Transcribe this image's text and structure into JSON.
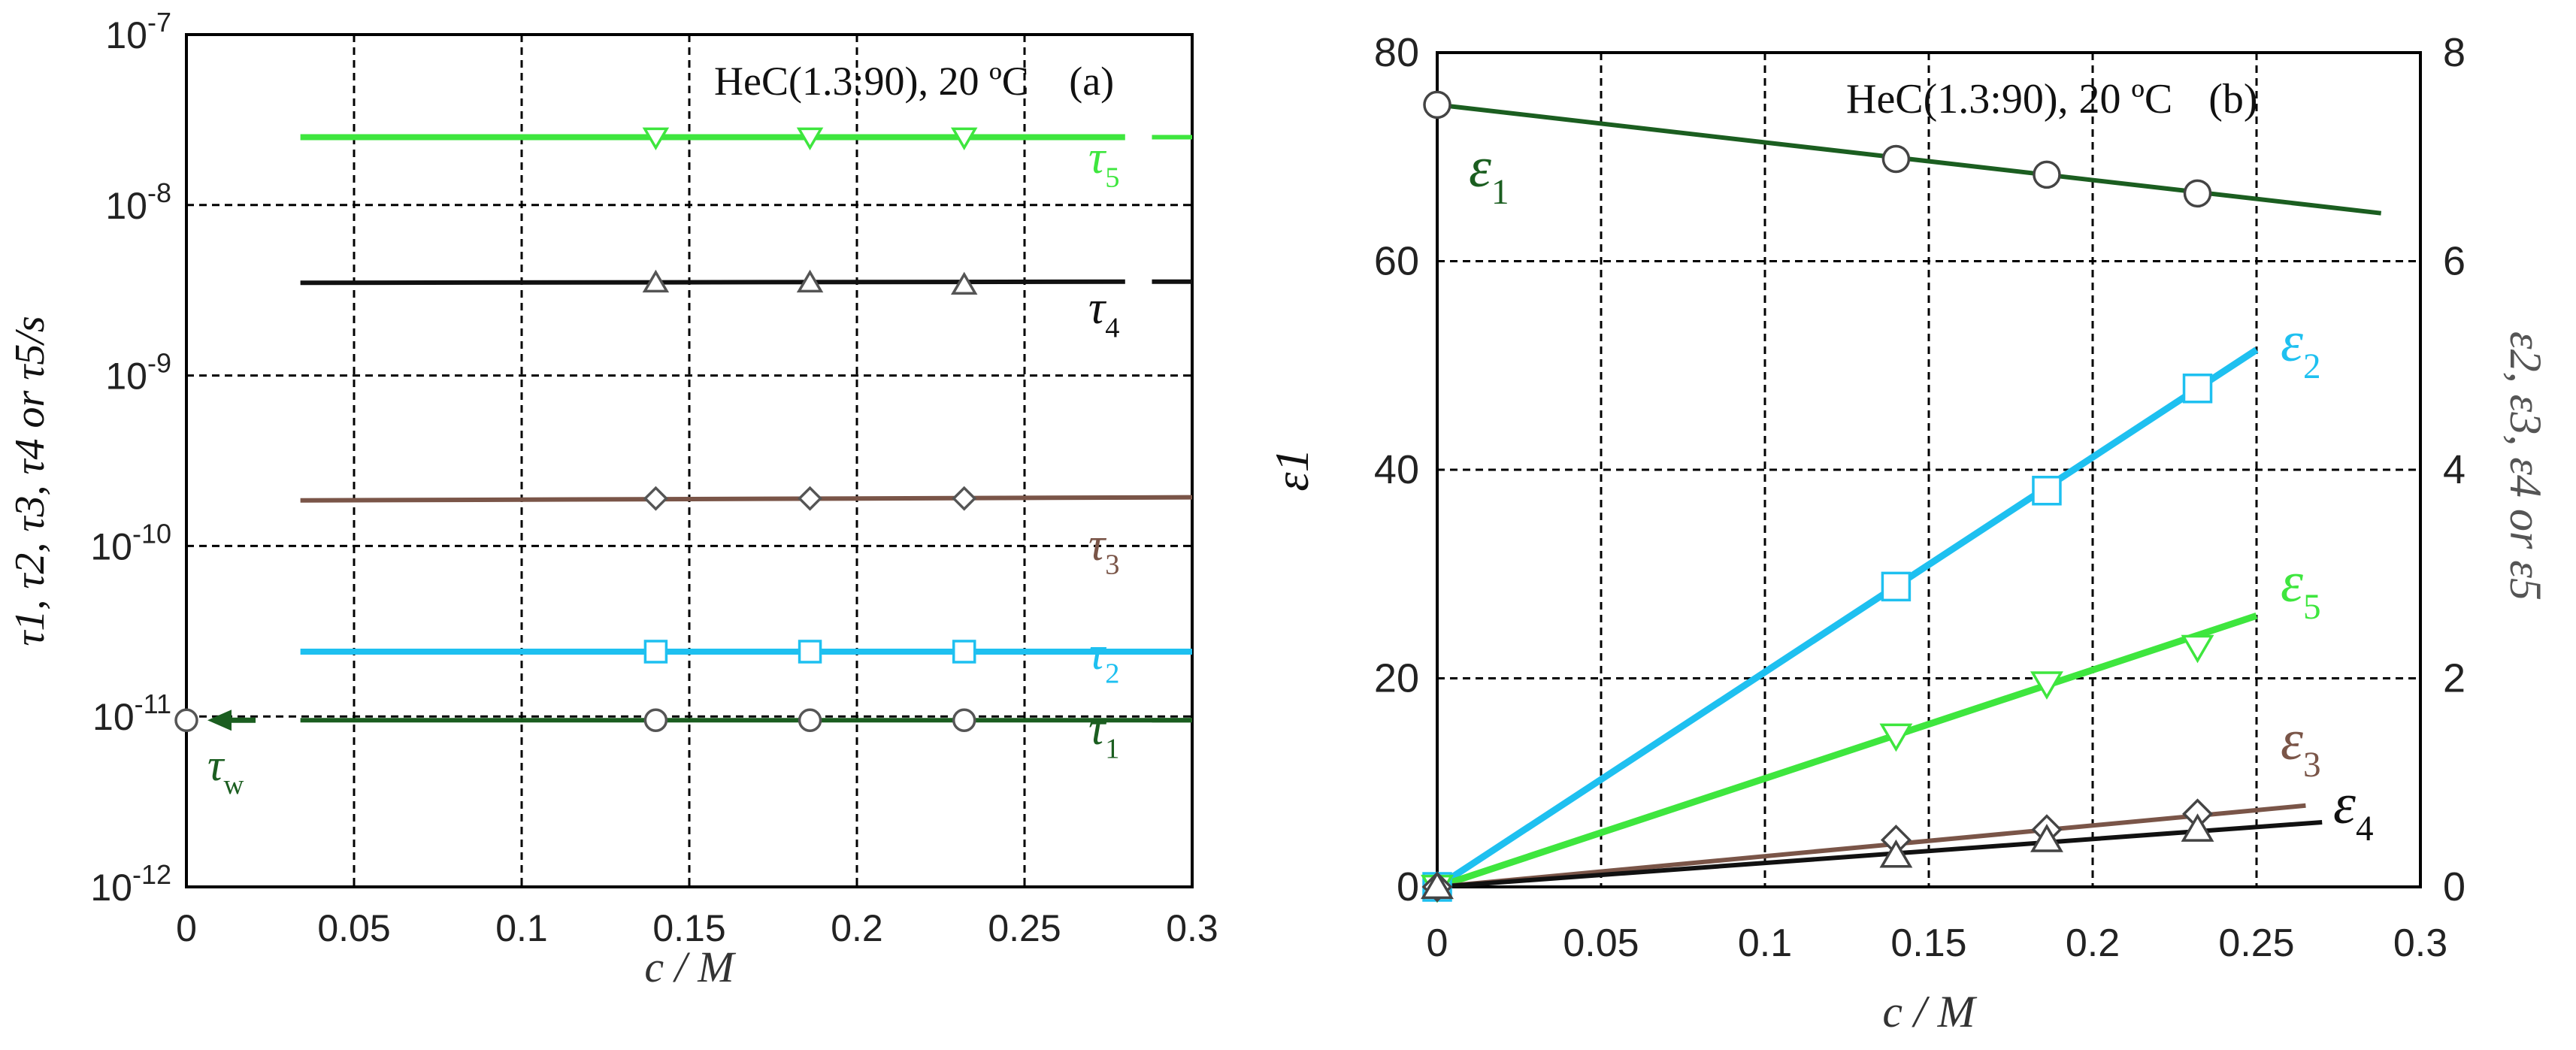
{
  "colors": {
    "tau1": "#1b5e20",
    "tau2": "#1ec0f0",
    "tau3": "#7a5548",
    "tau4": "#111111",
    "tau5": "#3ee63e",
    "eps1": "#1b5e20",
    "eps2": "#1ec0f0",
    "eps3": "#7a5548",
    "eps4": "#111111",
    "eps5": "#3ee63e",
    "tauw": "#1b5e20"
  },
  "chart_data": [
    {
      "id": "a",
      "type": "scatter",
      "yscale": "log",
      "title": "HeC(1.3:90), 20 ºC",
      "panel_label": "(a)",
      "xlabel": "c / M",
      "ylabel": "τ1, τ2, τ3, τ4 or τ5/s",
      "xlim": [
        0,
        0.3
      ],
      "ylim": [
        1e-12,
        1e-07
      ],
      "x_ticks": [
        "0",
        "0.05",
        "0.1",
        "0.15",
        "0.2",
        "0.25",
        "0.3"
      ],
      "y_ticks": [
        {
          "base": "10",
          "exp": "-12"
        },
        {
          "base": "10",
          "exp": "-11"
        },
        {
          "base": "10",
          "exp": "-10"
        },
        {
          "base": "10",
          "exp": "-9"
        },
        {
          "base": "10",
          "exp": "-8"
        },
        {
          "base": "10",
          "exp": "-7"
        }
      ],
      "grid": true,
      "series": [
        {
          "name": "τ5",
          "sym": "τ",
          "sub": "5",
          "marker": "triangle-down",
          "x": [
            0.14,
            0.186,
            0.232
          ],
          "y": [
            2.5e-08,
            2.5e-08,
            2.5e-08
          ],
          "fit_from": 0.034,
          "fit_to": 0.28,
          "fit_y": [
            2.5e-08,
            2.5e-08
          ]
        },
        {
          "name": "τ4",
          "sym": "τ",
          "sub": "4",
          "marker": "triangle-up",
          "x": [
            0.14,
            0.186,
            0.232
          ],
          "y": [
            3.5e-09,
            3.5e-09,
            3.4e-09
          ],
          "fit_from": 0.034,
          "fit_to": 0.28,
          "fit_y": [
            3.5e-09,
            3.55e-09
          ]
        },
        {
          "name": "τ3",
          "sym": "τ",
          "sub": "3",
          "marker": "diamond",
          "x": [
            0.14,
            0.186,
            0.232
          ],
          "y": [
            1.9e-10,
            1.9e-10,
            1.9e-10
          ],
          "fit_from": 0.034,
          "fit_to": 0.3,
          "fit_y": [
            1.85e-10,
            1.93e-10
          ]
        },
        {
          "name": "τ2",
          "sym": "τ",
          "sub": "2",
          "marker": "square",
          "x": [
            0.14,
            0.186,
            0.232
          ],
          "y": [
            2.4e-11,
            2.4e-11,
            2.4e-11
          ],
          "fit_from": 0.034,
          "fit_to": 0.3,
          "fit_y": [
            2.4e-11,
            2.4e-11
          ]
        },
        {
          "name": "τ1",
          "sym": "τ",
          "sub": "1",
          "marker": "circle",
          "x": [
            0.14,
            0.186,
            0.232
          ],
          "y": [
            9.5e-12,
            9.5e-12,
            9.5e-12
          ],
          "fit_from": 0.034,
          "fit_to": 0.3,
          "fit_y": [
            9.5e-12,
            9.5e-12
          ]
        }
      ],
      "annotations": [
        {
          "name": "τw",
          "sym": "τ",
          "sub": "w",
          "marker": "circle",
          "x": 0,
          "y": 9.5e-12,
          "note": "arrow pointing to point at c = 0"
        }
      ]
    },
    {
      "id": "b",
      "type": "scatter",
      "title": "HeC(1.3:90), 20 ºC",
      "panel_label": "(b)",
      "xlabel": "c / M",
      "ylabel": "ε1",
      "ylabel_right": "ε2, ε3, ε4 or ε5",
      "xlim": [
        0,
        0.3
      ],
      "ylim": [
        0,
        80
      ],
      "ylim_right": [
        0,
        8
      ],
      "x_ticks": [
        "0",
        "0.05",
        "0.1",
        "0.15",
        "0.2",
        "0.25",
        "0.3"
      ],
      "y_ticks": [
        "0",
        "20",
        "40",
        "60",
        "80"
      ],
      "y_ticks_right": [
        "0",
        "2",
        "4",
        "6",
        "8"
      ],
      "grid": true,
      "series": [
        {
          "name": "ε1",
          "sym": "ε",
          "sub": "1",
          "axis": "left",
          "marker": "circle",
          "x": [
            0,
            0.14,
            0.186,
            0.232
          ],
          "y": [
            75.0,
            69.8,
            68.3,
            66.5
          ],
          "fit_to": 0.288,
          "fit_y": [
            75.0,
            64.6
          ]
        },
        {
          "name": "ε2",
          "sym": "ε",
          "sub": "2",
          "axis": "right",
          "marker": "square",
          "x": [
            0,
            0.14,
            0.186,
            0.232
          ],
          "y": [
            0,
            2.88,
            3.8,
            4.78
          ],
          "fit_to": 0.25,
          "fit_y": [
            0,
            5.15
          ]
        },
        {
          "name": "ε5",
          "sym": "ε",
          "sub": "5",
          "axis": "right",
          "marker": "triangle-down",
          "x": [
            0,
            0.14,
            0.186,
            0.232
          ],
          "y": [
            0,
            1.45,
            1.95,
            2.3
          ],
          "fit_to": 0.25,
          "fit_y": [
            0,
            2.6
          ]
        },
        {
          "name": "ε3",
          "sym": "ε",
          "sub": "3",
          "axis": "right",
          "marker": "diamond",
          "x": [
            0,
            0.14,
            0.186,
            0.232
          ],
          "y": [
            0,
            0.45,
            0.55,
            0.7
          ],
          "fit_to": 0.265,
          "fit_y": [
            0,
            0.78
          ]
        },
        {
          "name": "ε4",
          "sym": "ε",
          "sub": "4",
          "axis": "right",
          "marker": "triangle-up",
          "x": [
            0,
            0.14,
            0.186,
            0.232
          ],
          "y": [
            0,
            0.3,
            0.45,
            0.55
          ],
          "fit_to": 0.27,
          "fit_y": [
            0,
            0.62
          ]
        }
      ]
    }
  ]
}
